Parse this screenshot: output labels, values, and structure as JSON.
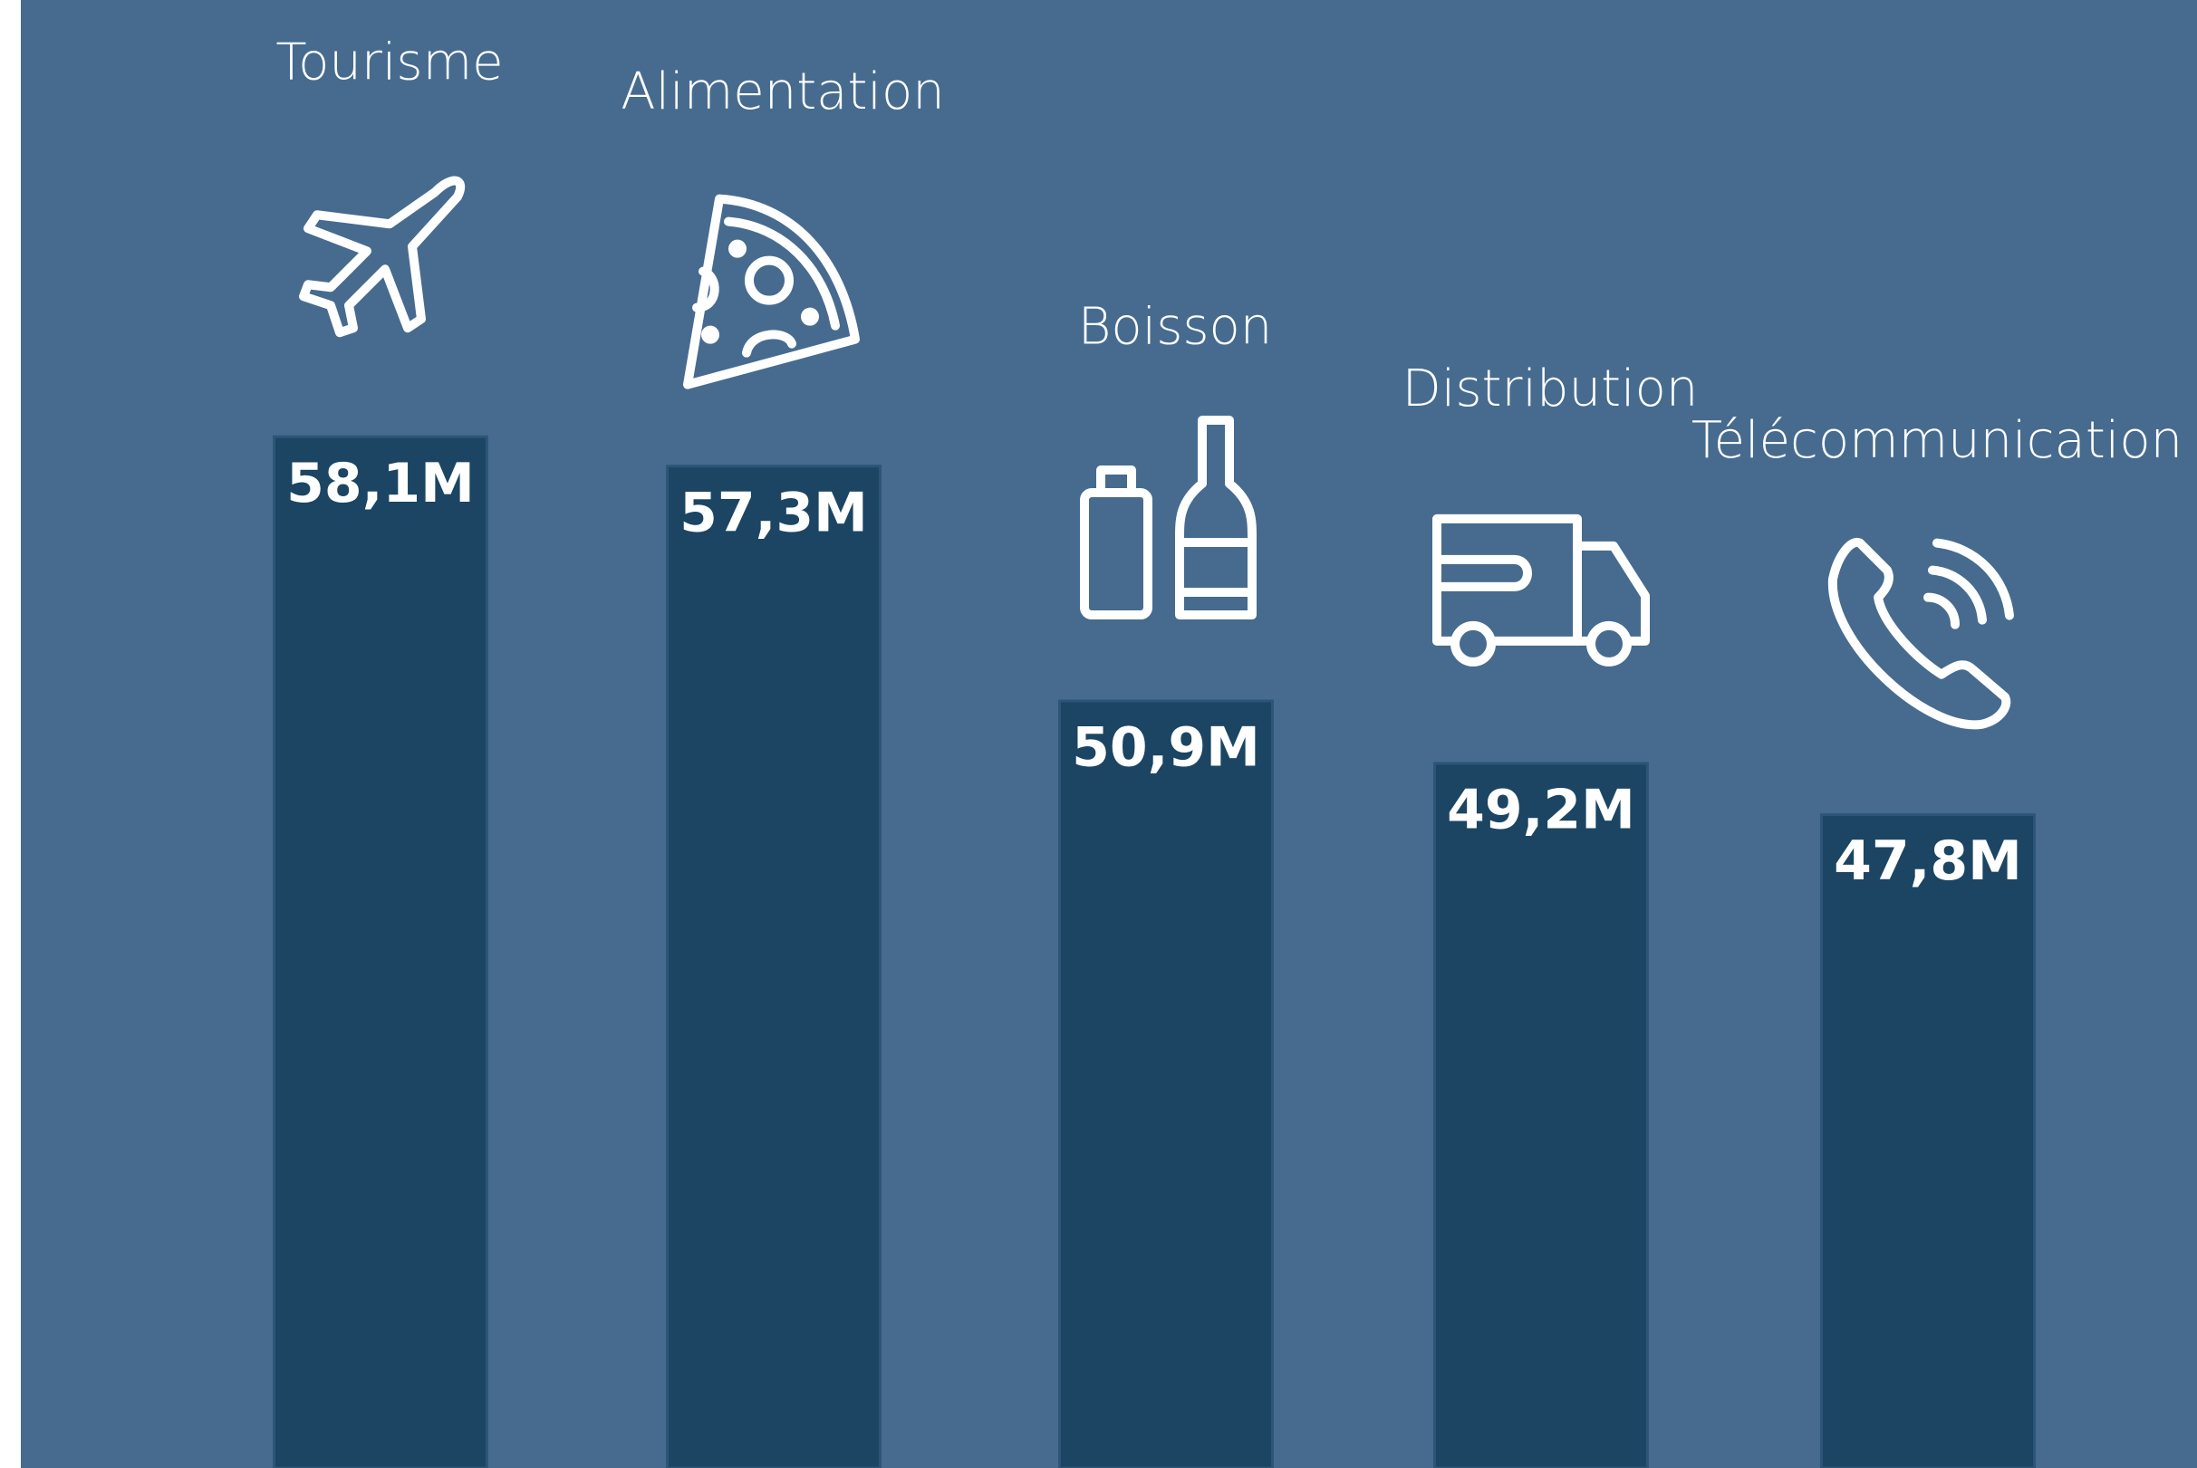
{
  "chart_data": {
    "type": "bar",
    "categories": [
      "Tourisme",
      "Alimentation",
      "Boisson",
      "Distribution",
      "Télécommunication"
    ],
    "values": [
      58.1,
      57.3,
      50.9,
      49.2,
      47.8
    ],
    "value_labels": [
      "58,1M",
      "57,3M",
      "50,9M",
      "49,2M",
      "47,8M"
    ],
    "color": "#1b4562",
    "background": "#466b8f",
    "ylim": [
      30,
      70
    ]
  }
}
